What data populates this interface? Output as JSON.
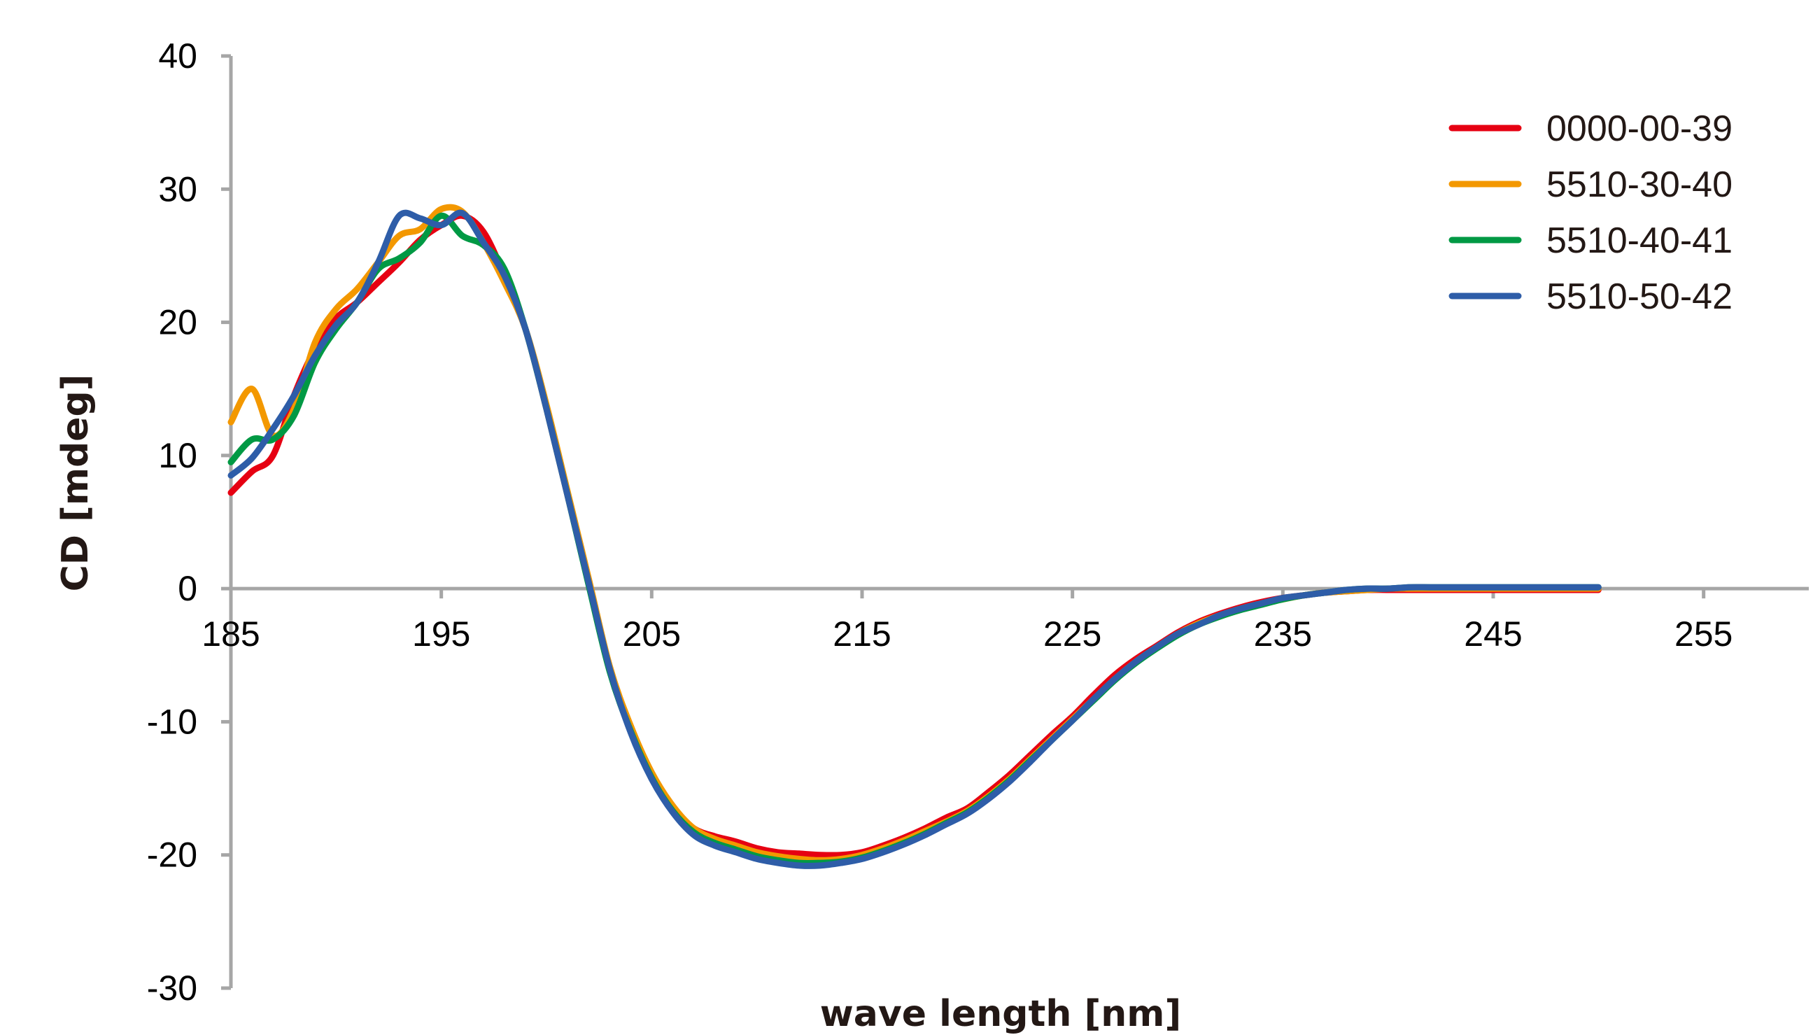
{
  "chart_data": {
    "type": "line",
    "title": "",
    "xlabel": "wave length [nm]",
    "ylabel": "CD [mdeg]",
    "xlim": [
      185,
      260
    ],
    "ylim": [
      -30,
      40
    ],
    "x_ticks": [
      "185",
      "195",
      "205",
      "215",
      "225",
      "235",
      "245",
      "255"
    ],
    "y_ticks": [
      "40",
      "30",
      "20",
      "10",
      "0",
      "-10",
      "-20",
      "-30"
    ],
    "grid": false,
    "legend_position": "top-right",
    "series": [
      {
        "name": "0000-00-39",
        "color": "#e60012",
        "points": [
          [
            185,
            7.2
          ],
          [
            186,
            8.8
          ],
          [
            187,
            10.0
          ],
          [
            188,
            14.5
          ],
          [
            189,
            18.0
          ],
          [
            190,
            20.3
          ],
          [
            191,
            21.5
          ],
          [
            192,
            23.0
          ],
          [
            193,
            24.5
          ],
          [
            194,
            26.2
          ],
          [
            195,
            27.3
          ],
          [
            196,
            28.0
          ],
          [
            197,
            26.8
          ],
          [
            198,
            23.5
          ],
          [
            199,
            19.5
          ],
          [
            200,
            13.5
          ],
          [
            201,
            7.0
          ],
          [
            202,
            0.5
          ],
          [
            203,
            -6.0
          ],
          [
            204,
            -10.5
          ],
          [
            205,
            -14.0
          ],
          [
            206,
            -16.5
          ],
          [
            207,
            -18.0
          ],
          [
            208,
            -18.6
          ],
          [
            209,
            -19.0
          ],
          [
            210,
            -19.5
          ],
          [
            211,
            -19.8
          ],
          [
            212,
            -19.9
          ],
          [
            213,
            -20.0
          ],
          [
            214,
            -20.0
          ],
          [
            215,
            -19.8
          ],
          [
            216,
            -19.3
          ],
          [
            217,
            -18.7
          ],
          [
            218,
            -18.0
          ],
          [
            219,
            -17.2
          ],
          [
            220,
            -16.5
          ],
          [
            221,
            -15.3
          ],
          [
            222,
            -14.0
          ],
          [
            223,
            -12.5
          ],
          [
            224,
            -11.0
          ],
          [
            225,
            -9.6
          ],
          [
            226,
            -8.0
          ],
          [
            227,
            -6.5
          ],
          [
            228,
            -5.3
          ],
          [
            229,
            -4.3
          ],
          [
            230,
            -3.3
          ],
          [
            231,
            -2.5
          ],
          [
            232,
            -1.9
          ],
          [
            233,
            -1.4
          ],
          [
            234,
            -1.0
          ],
          [
            235,
            -0.7
          ],
          [
            236,
            -0.5
          ],
          [
            237,
            -0.3
          ],
          [
            238,
            -0.2
          ],
          [
            239,
            -0.1
          ],
          [
            240,
            -0.1
          ],
          [
            241,
            -0.1
          ],
          [
            242,
            -0.1
          ],
          [
            243,
            -0.1
          ],
          [
            244,
            -0.1
          ],
          [
            245,
            -0.1
          ],
          [
            246,
            -0.1
          ],
          [
            247,
            -0.1
          ],
          [
            248,
            -0.1
          ],
          [
            249,
            -0.1
          ],
          [
            250,
            -0.1
          ]
        ]
      },
      {
        "name": "5510-30-40",
        "color": "#f39800",
        "points": [
          [
            185,
            12.5
          ],
          [
            186,
            15.0
          ],
          [
            187,
            11.5
          ],
          [
            188,
            13.5
          ],
          [
            189,
            18.5
          ],
          [
            190,
            21.0
          ],
          [
            191,
            22.5
          ],
          [
            192,
            24.5
          ],
          [
            193,
            26.5
          ],
          [
            194,
            27.0
          ],
          [
            195,
            28.5
          ],
          [
            196,
            28.3
          ],
          [
            197,
            26.0
          ],
          [
            198,
            23.0
          ],
          [
            199,
            19.5
          ],
          [
            200,
            13.8
          ],
          [
            201,
            7.3
          ],
          [
            202,
            0.8
          ],
          [
            203,
            -5.8
          ],
          [
            204,
            -10.3
          ],
          [
            205,
            -13.8
          ],
          [
            206,
            -16.3
          ],
          [
            207,
            -18.0
          ],
          [
            208,
            -18.8
          ],
          [
            209,
            -19.3
          ],
          [
            210,
            -19.8
          ],
          [
            211,
            -20.1
          ],
          [
            212,
            -20.3
          ],
          [
            213,
            -20.4
          ],
          [
            214,
            -20.3
          ],
          [
            215,
            -20.0
          ],
          [
            216,
            -19.5
          ],
          [
            217,
            -18.9
          ],
          [
            218,
            -18.2
          ],
          [
            219,
            -17.5
          ],
          [
            220,
            -16.7
          ],
          [
            221,
            -15.6
          ],
          [
            222,
            -14.3
          ],
          [
            223,
            -12.8
          ],
          [
            224,
            -11.3
          ],
          [
            225,
            -9.8
          ],
          [
            226,
            -8.3
          ],
          [
            227,
            -6.8
          ],
          [
            228,
            -5.5
          ],
          [
            229,
            -4.4
          ],
          [
            230,
            -3.4
          ],
          [
            231,
            -2.6
          ],
          [
            232,
            -2.0
          ],
          [
            233,
            -1.5
          ],
          [
            234,
            -1.1
          ],
          [
            235,
            -0.8
          ],
          [
            236,
            -0.5
          ],
          [
            237,
            -0.3
          ],
          [
            238,
            -0.2
          ],
          [
            239,
            -0.1
          ],
          [
            240,
            0.0
          ],
          [
            241,
            0.0
          ],
          [
            242,
            0.0
          ],
          [
            243,
            0.0
          ],
          [
            244,
            0.0
          ],
          [
            245,
            0.0
          ],
          [
            246,
            0.0
          ],
          [
            247,
            0.0
          ],
          [
            248,
            0.0
          ],
          [
            249,
            0.0
          ],
          [
            250,
            0.0
          ]
        ]
      },
      {
        "name": "5510-40-41",
        "color": "#009944",
        "points": [
          [
            185,
            9.5
          ],
          [
            186,
            11.2
          ],
          [
            187,
            11.2
          ],
          [
            188,
            13.0
          ],
          [
            189,
            17.0
          ],
          [
            190,
            19.5
          ],
          [
            191,
            21.5
          ],
          [
            192,
            24.0
          ],
          [
            193,
            24.8
          ],
          [
            194,
            26.0
          ],
          [
            195,
            28.0
          ],
          [
            196,
            26.5
          ],
          [
            197,
            25.8
          ],
          [
            198,
            24.0
          ],
          [
            199,
            19.5
          ],
          [
            200,
            13.5
          ],
          [
            201,
            7.0
          ],
          [
            202,
            0.3
          ],
          [
            203,
            -6.2
          ],
          [
            204,
            -10.7
          ],
          [
            205,
            -14.2
          ],
          [
            206,
            -16.7
          ],
          [
            207,
            -18.3
          ],
          [
            208,
            -19.1
          ],
          [
            209,
            -19.6
          ],
          [
            210,
            -20.1
          ],
          [
            211,
            -20.4
          ],
          [
            212,
            -20.6
          ],
          [
            213,
            -20.6
          ],
          [
            214,
            -20.5
          ],
          [
            215,
            -20.2
          ],
          [
            216,
            -19.7
          ],
          [
            217,
            -19.1
          ],
          [
            218,
            -18.4
          ],
          [
            219,
            -17.6
          ],
          [
            220,
            -16.8
          ],
          [
            221,
            -15.7
          ],
          [
            222,
            -14.4
          ],
          [
            223,
            -12.9
          ],
          [
            224,
            -11.4
          ],
          [
            225,
            -9.9
          ],
          [
            226,
            -8.4
          ],
          [
            227,
            -6.9
          ],
          [
            228,
            -5.6
          ],
          [
            229,
            -4.5
          ],
          [
            230,
            -3.5
          ],
          [
            231,
            -2.7
          ],
          [
            232,
            -2.1
          ],
          [
            233,
            -1.6
          ],
          [
            234,
            -1.2
          ],
          [
            235,
            -0.8
          ],
          [
            236,
            -0.5
          ],
          [
            237,
            -0.3
          ],
          [
            238,
            -0.1
          ],
          [
            239,
            0.0
          ],
          [
            240,
            0.0
          ],
          [
            241,
            0.1
          ],
          [
            242,
            0.1
          ],
          [
            243,
            0.1
          ],
          [
            244,
            0.1
          ],
          [
            245,
            0.1
          ],
          [
            246,
            0.1
          ],
          [
            247,
            0.1
          ],
          [
            248,
            0.1
          ],
          [
            249,
            0.1
          ],
          [
            250,
            0.1
          ]
        ]
      },
      {
        "name": "5510-50-42",
        "color": "#2e5da8",
        "points": [
          [
            185,
            8.5
          ],
          [
            186,
            9.8
          ],
          [
            187,
            12.0
          ],
          [
            188,
            14.5
          ],
          [
            189,
            17.5
          ],
          [
            190,
            19.8
          ],
          [
            191,
            21.5
          ],
          [
            192,
            24.5
          ],
          [
            193,
            28.0
          ],
          [
            194,
            27.8
          ],
          [
            195,
            27.3
          ],
          [
            196,
            28.2
          ],
          [
            197,
            26.0
          ],
          [
            198,
            23.5
          ],
          [
            199,
            19.5
          ],
          [
            200,
            13.5
          ],
          [
            201,
            7.0
          ],
          [
            202,
            0.5
          ],
          [
            203,
            -6.0
          ],
          [
            204,
            -10.8
          ],
          [
            205,
            -14.3
          ],
          [
            206,
            -16.8
          ],
          [
            207,
            -18.5
          ],
          [
            208,
            -19.3
          ],
          [
            209,
            -19.8
          ],
          [
            210,
            -20.3
          ],
          [
            211,
            -20.6
          ],
          [
            212,
            -20.8
          ],
          [
            213,
            -20.8
          ],
          [
            214,
            -20.6
          ],
          [
            215,
            -20.3
          ],
          [
            216,
            -19.8
          ],
          [
            217,
            -19.2
          ],
          [
            218,
            -18.5
          ],
          [
            219,
            -17.7
          ],
          [
            220,
            -16.9
          ],
          [
            221,
            -15.8
          ],
          [
            222,
            -14.5
          ],
          [
            223,
            -13.0
          ],
          [
            224,
            -11.4
          ],
          [
            225,
            -9.9
          ],
          [
            226,
            -8.3
          ],
          [
            227,
            -6.8
          ],
          [
            228,
            -5.5
          ],
          [
            229,
            -4.4
          ],
          [
            230,
            -3.4
          ],
          [
            231,
            -2.7
          ],
          [
            232,
            -2.0
          ],
          [
            233,
            -1.5
          ],
          [
            234,
            -1.1
          ],
          [
            235,
            -0.7
          ],
          [
            236,
            -0.5
          ],
          [
            237,
            -0.3
          ],
          [
            238,
            -0.1
          ],
          [
            239,
            0.0
          ],
          [
            240,
            0.0
          ],
          [
            241,
            0.1
          ],
          [
            242,
            0.1
          ],
          [
            243,
            0.1
          ],
          [
            244,
            0.1
          ],
          [
            245,
            0.1
          ],
          [
            246,
            0.1
          ],
          [
            247,
            0.1
          ],
          [
            248,
            0.1
          ],
          [
            249,
            0.1
          ],
          [
            250,
            0.1
          ]
        ]
      }
    ]
  }
}
